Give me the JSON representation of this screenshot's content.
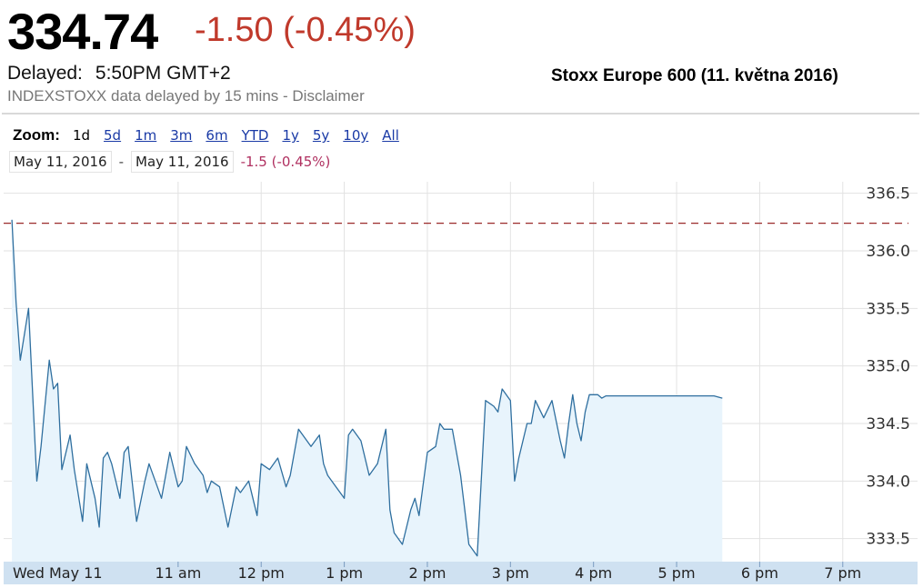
{
  "header": {
    "price": "334.74",
    "change": "-1.50 (-0.45%)",
    "delayed_label": "Delayed:",
    "delayed_time": "5:50PM GMT+2",
    "source_note": "INDEXSTOXX data delayed by 15 mins - Disclaimer"
  },
  "annotation": "Stoxx Europe 600 (11. května 2016)",
  "colors": {
    "line": "#2f6f9f",
    "fill": "#e8f4fc",
    "prev_close": "#9b2a2a",
    "negative": "#c0392b",
    "axis_band": "#cfe1f1",
    "grid": "#e2e2e2"
  },
  "zoom": {
    "label": "Zoom:",
    "options": [
      "1d",
      "5d",
      "1m",
      "3m",
      "6m",
      "YTD",
      "1y",
      "5y",
      "10y",
      "All"
    ],
    "active": "1d"
  },
  "range": {
    "from": "May 11, 2016",
    "separator": "-",
    "to": "May 11, 2016",
    "change": "-1.5 (-0.45%)"
  },
  "chart_data": {
    "type": "area",
    "title": "",
    "xlabel": "",
    "ylabel": "",
    "ylim": [
      333.3,
      336.6
    ],
    "yticks": [
      336.5,
      336.0,
      335.5,
      335.0,
      334.5,
      334.0,
      333.5
    ],
    "ytick_labels": [
      "336.5",
      "336.0",
      "335.5",
      "335.0",
      "334.5",
      "334.0",
      "333.5"
    ],
    "xlim": [
      8.9,
      19.9
    ],
    "xticks": [
      9,
      11,
      12,
      13,
      14,
      15,
      16,
      17,
      18,
      19
    ],
    "xtick_labels": [
      "Wed May 11",
      "11 am",
      "12 pm",
      "1 pm",
      "2 pm",
      "3 pm",
      "4 pm",
      "5 pm",
      "6 pm",
      "7 pm"
    ],
    "previous_close": 336.24,
    "grid": true,
    "series": [
      {
        "x": [
          9.0,
          9.05,
          9.1,
          9.2,
          9.3,
          9.35,
          9.45,
          9.5,
          9.55,
          9.6,
          9.7,
          9.75,
          9.85,
          9.9,
          10.0,
          10.05,
          10.1,
          10.15,
          10.2,
          10.3,
          10.35,
          10.4,
          10.5,
          10.6,
          10.65,
          10.8,
          10.85,
          10.9,
          11.0,
          11.05,
          11.1,
          11.2,
          11.3,
          11.35,
          11.4,
          11.5,
          11.6,
          11.7,
          11.75,
          11.85,
          11.95,
          12.0,
          12.1,
          12.2,
          12.3,
          12.35,
          12.45,
          12.55,
          12.6,
          12.7,
          12.75,
          12.8,
          12.9,
          13.0,
          13.05,
          13.1,
          13.2,
          13.3,
          13.4,
          13.5,
          13.55,
          13.6,
          13.7,
          13.8,
          13.85,
          13.9,
          14.0,
          14.1,
          14.15,
          14.2,
          14.3,
          14.4,
          14.45,
          14.5,
          14.6,
          14.7,
          14.8,
          14.85,
          14.9,
          15.0,
          15.05,
          15.1,
          15.2,
          15.25,
          15.3,
          15.4,
          15.5,
          15.6,
          15.65,
          15.7,
          15.75,
          15.8,
          15.85,
          15.9,
          15.95,
          16.0,
          16.05,
          16.1,
          16.15,
          16.2,
          16.3,
          16.35,
          16.4,
          16.5,
          16.55,
          16.6,
          16.7,
          16.75,
          16.8,
          16.9,
          17.0,
          17.05,
          17.15,
          17.25,
          17.35,
          17.45,
          17.55
        ],
        "y": [
          336.27,
          335.55,
          335.05,
          335.5,
          334.0,
          334.3,
          335.05,
          334.8,
          334.85,
          334.1,
          334.4,
          334.1,
          333.65,
          334.15,
          333.85,
          333.6,
          334.2,
          334.25,
          334.15,
          333.85,
          334.25,
          334.3,
          333.65,
          334.0,
          334.15,
          333.85,
          334.05,
          334.25,
          333.95,
          334.0,
          334.3,
          334.15,
          334.05,
          333.9,
          334.0,
          333.95,
          333.6,
          333.95,
          333.9,
          334.0,
          333.7,
          334.15,
          334.1,
          334.2,
          333.95,
          334.05,
          334.45,
          334.35,
          334.3,
          334.4,
          334.15,
          334.05,
          333.95,
          333.85,
          334.4,
          334.45,
          334.35,
          334.05,
          334.15,
          334.45,
          333.75,
          333.55,
          333.45,
          333.75,
          333.85,
          333.7,
          334.25,
          334.3,
          334.5,
          334.45,
          334.45,
          334.05,
          333.75,
          333.45,
          333.35,
          334.7,
          334.65,
          334.6,
          334.8,
          334.7,
          334.0,
          334.2,
          334.5,
          334.5,
          334.7,
          334.55,
          334.7,
          334.35,
          334.2,
          334.5,
          334.75,
          334.5,
          334.35,
          334.6,
          334.75,
          334.75,
          334.75,
          334.72,
          334.74,
          334.74,
          334.74,
          334.74,
          334.74,
          334.74,
          334.74,
          334.74,
          334.74,
          334.74,
          334.74,
          334.74,
          334.74,
          334.74,
          334.74,
          334.74,
          334.74,
          334.74,
          334.72
        ]
      }
    ]
  }
}
